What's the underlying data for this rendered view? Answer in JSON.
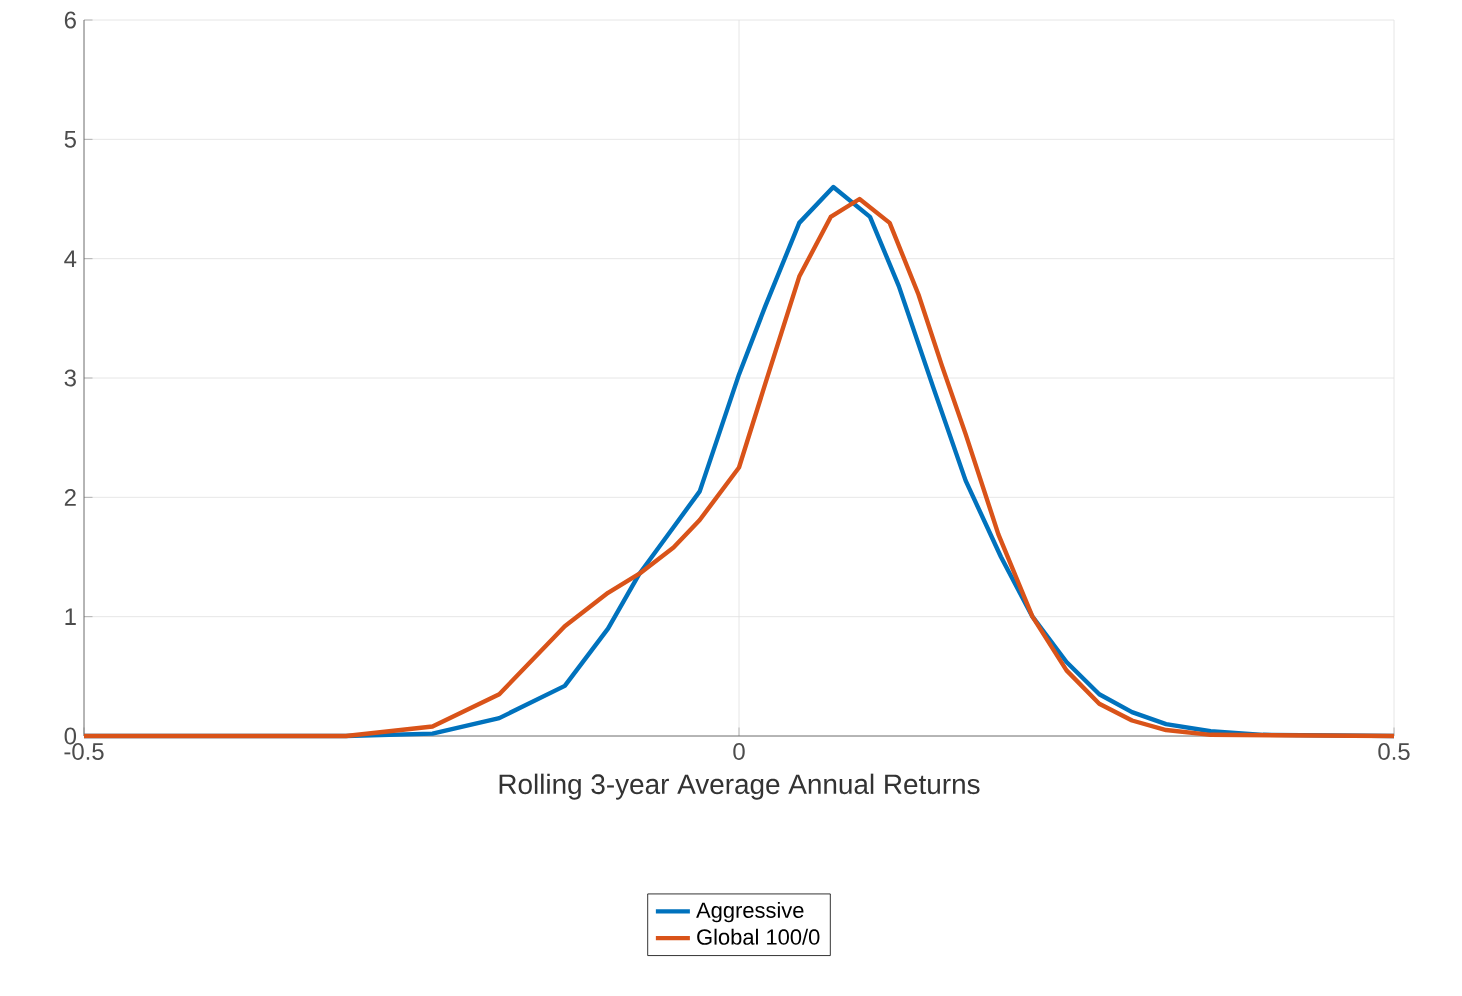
{
  "chart_data": {
    "type": "line",
    "xlabel": "Rolling 3-year Average Annual Returns",
    "xlim": [
      -0.5,
      0.5
    ],
    "xticks": [
      -0.5,
      0,
      0.5
    ],
    "ylim": [
      0,
      6
    ],
    "yticks": [
      0,
      1,
      2,
      3,
      4,
      5,
      6
    ],
    "grid": true,
    "legend": "bottom",
    "line_style": "solid",
    "marker": "none",
    "series": [
      {
        "name": "Aggressive",
        "color": "#0072bd",
        "x": [
          -0.5,
          -0.3,
          -0.234,
          -0.183,
          -0.133,
          -0.1,
          -0.076,
          -0.05,
          -0.03,
          0,
          0.02,
          0.046,
          0.072,
          0.1,
          0.122,
          0.148,
          0.173,
          0.2,
          0.224,
          0.25,
          0.275,
          0.3,
          0.326,
          0.36,
          0.4,
          0.5
        ],
        "values": [
          0,
          0,
          0.02,
          0.15,
          0.42,
          0.9,
          1.36,
          1.75,
          2.05,
          3.03,
          3.6,
          4.3,
          4.6,
          4.35,
          3.77,
          2.93,
          2.14,
          1.5,
          1.0,
          0.62,
          0.35,
          0.2,
          0.1,
          0.04,
          0.01,
          0
        ]
      },
      {
        "name": "Global 100/0",
        "color": "#d95319",
        "x": [
          -0.5,
          -0.3,
          -0.234,
          -0.183,
          -0.133,
          -0.1,
          -0.076,
          -0.05,
          -0.03,
          0,
          0.02,
          0.046,
          0.07,
          0.092,
          0.115,
          0.137,
          0.155,
          0.173,
          0.198,
          0.224,
          0.25,
          0.275,
          0.3,
          0.326,
          0.36,
          0.5
        ],
        "values": [
          0,
          0,
          0.08,
          0.35,
          0.92,
          1.2,
          1.36,
          1.58,
          1.81,
          2.25,
          2.95,
          3.85,
          4.35,
          4.5,
          4.3,
          3.7,
          3.1,
          2.53,
          1.69,
          1.0,
          0.55,
          0.27,
          0.13,
          0.05,
          0.01,
          0
        ]
      }
    ]
  }
}
